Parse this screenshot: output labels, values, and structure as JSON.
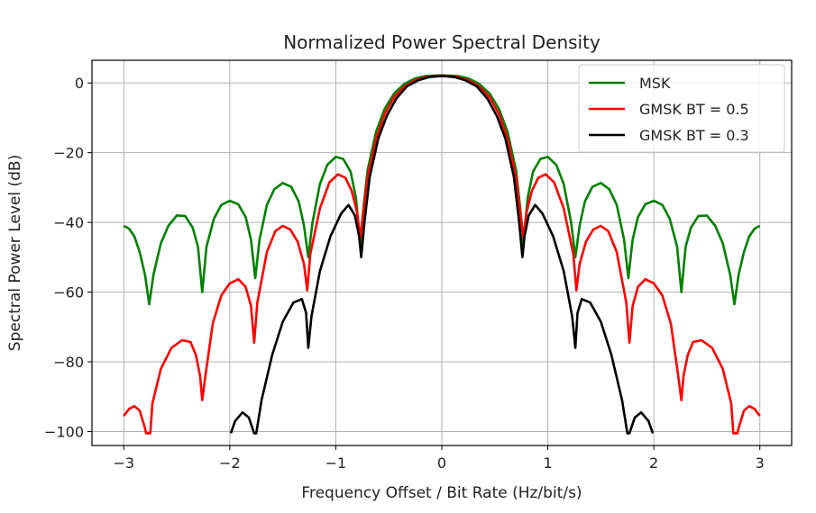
{
  "chart_data": {
    "type": "line",
    "title": "Normalized Power Spectral Density",
    "xlabel": "Frequency Offset / Bit Rate (Hz/bit/s)",
    "ylabel": "Spectral Power Level (dB)",
    "xlim": [
      -3.3,
      3.3
    ],
    "ylim": [
      -104,
      6.5
    ],
    "xticks": [
      -3,
      -2,
      -1,
      0,
      1,
      2,
      3
    ],
    "xtick_labels": [
      "−3",
      "−2",
      "−1",
      "0",
      "1",
      "2",
      "3"
    ],
    "yticks": [
      0,
      -20,
      -40,
      -60,
      -80,
      -100
    ],
    "ytick_labels": [
      "0",
      "−20",
      "−40",
      "−60",
      "−80",
      "−100"
    ],
    "grid": true,
    "legend_position": "top-right",
    "series": [
      {
        "name": "MSK",
        "color": "#008000",
        "points": [
          [
            -3.0,
            -41
          ],
          [
            -2.95,
            -41.8
          ],
          [
            -2.9,
            -44
          ],
          [
            -2.85,
            -48.5
          ],
          [
            -2.8,
            -55
          ],
          [
            -2.76,
            -63.5
          ],
          [
            -2.72,
            -55
          ],
          [
            -2.65,
            -46
          ],
          [
            -2.58,
            -41
          ],
          [
            -2.5,
            -38
          ],
          [
            -2.42,
            -38.2
          ],
          [
            -2.35,
            -41.5
          ],
          [
            -2.3,
            -47
          ],
          [
            -2.26,
            -60
          ],
          [
            -2.22,
            -47
          ],
          [
            -2.15,
            -39
          ],
          [
            -2.08,
            -35
          ],
          [
            -2.0,
            -33.8
          ],
          [
            -1.92,
            -34.8
          ],
          [
            -1.85,
            -38.5
          ],
          [
            -1.8,
            -45
          ],
          [
            -1.76,
            -56
          ],
          [
            -1.72,
            -45
          ],
          [
            -1.65,
            -35
          ],
          [
            -1.58,
            -30.5
          ],
          [
            -1.5,
            -28.7
          ],
          [
            -1.42,
            -29.8
          ],
          [
            -1.35,
            -34
          ],
          [
            -1.3,
            -41
          ],
          [
            -1.26,
            -50
          ],
          [
            -1.22,
            -40
          ],
          [
            -1.15,
            -29
          ],
          [
            -1.08,
            -23.5
          ],
          [
            -1.0,
            -21.2
          ],
          [
            -0.93,
            -21.8
          ],
          [
            -0.86,
            -25.5
          ],
          [
            -0.81,
            -33
          ],
          [
            -0.77,
            -46
          ],
          [
            -0.74,
            -36
          ],
          [
            -0.7,
            -25
          ],
          [
            -0.62,
            -14
          ],
          [
            -0.54,
            -7.5
          ],
          [
            -0.45,
            -3
          ],
          [
            -0.35,
            -0.2
          ],
          [
            -0.25,
            1.3
          ],
          [
            -0.15,
            2.0
          ],
          [
            0,
            2.2
          ],
          [
            0.15,
            2.0
          ],
          [
            0.25,
            1.3
          ],
          [
            0.35,
            -0.2
          ],
          [
            0.45,
            -3
          ],
          [
            0.54,
            -7.5
          ],
          [
            0.62,
            -14
          ],
          [
            0.7,
            -25
          ],
          [
            0.74,
            -36
          ],
          [
            0.77,
            -46
          ],
          [
            0.81,
            -33
          ],
          [
            0.86,
            -25.5
          ],
          [
            0.93,
            -21.8
          ],
          [
            1.0,
            -21.2
          ],
          [
            1.08,
            -23.5
          ],
          [
            1.15,
            -29
          ],
          [
            1.22,
            -40
          ],
          [
            1.26,
            -50
          ],
          [
            1.3,
            -41
          ],
          [
            1.35,
            -34
          ],
          [
            1.42,
            -29.8
          ],
          [
            1.5,
            -28.7
          ],
          [
            1.58,
            -30.5
          ],
          [
            1.65,
            -35
          ],
          [
            1.72,
            -45
          ],
          [
            1.76,
            -56
          ],
          [
            1.8,
            -45
          ],
          [
            1.85,
            -38.5
          ],
          [
            1.92,
            -34.8
          ],
          [
            2.0,
            -33.8
          ],
          [
            2.08,
            -35
          ],
          [
            2.15,
            -39
          ],
          [
            2.22,
            -47
          ],
          [
            2.26,
            -60
          ],
          [
            2.3,
            -47
          ],
          [
            2.35,
            -41.5
          ],
          [
            2.42,
            -38.2
          ],
          [
            2.5,
            -38
          ],
          [
            2.58,
            -41
          ],
          [
            2.65,
            -46
          ],
          [
            2.72,
            -55
          ],
          [
            2.76,
            -63.5
          ],
          [
            2.8,
            -55
          ],
          [
            2.85,
            -48.5
          ],
          [
            2.9,
            -44
          ],
          [
            2.95,
            -41.8
          ],
          [
            3.0,
            -41
          ]
        ]
      },
      {
        "name": "GMSK BT = 0.5",
        "color": "#ff0000",
        "points": [
          [
            -3.0,
            -95.5
          ],
          [
            -2.95,
            -93.5
          ],
          [
            -2.9,
            -92.7
          ],
          [
            -2.85,
            -94
          ],
          [
            -2.8,
            -99
          ],
          [
            -2.79,
            -100.5
          ],
          [
            -2.75,
            -100.5
          ],
          [
            -2.73,
            -92
          ],
          [
            -2.65,
            -82
          ],
          [
            -2.55,
            -76
          ],
          [
            -2.45,
            -73.8
          ],
          [
            -2.37,
            -74.3
          ],
          [
            -2.32,
            -78
          ],
          [
            -2.28,
            -84
          ],
          [
            -2.26,
            -91
          ],
          [
            -2.23,
            -84
          ],
          [
            -2.16,
            -69
          ],
          [
            -2.08,
            -61
          ],
          [
            -2.0,
            -57.5
          ],
          [
            -1.92,
            -56.3
          ],
          [
            -1.85,
            -58.5
          ],
          [
            -1.8,
            -64
          ],
          [
            -1.77,
            -74.5
          ],
          [
            -1.74,
            -63
          ],
          [
            -1.65,
            -48.5
          ],
          [
            -1.57,
            -42.5
          ],
          [
            -1.5,
            -41.0
          ],
          [
            -1.43,
            -42
          ],
          [
            -1.36,
            -45.5
          ],
          [
            -1.3,
            -52
          ],
          [
            -1.27,
            -59.5
          ],
          [
            -1.24,
            -49
          ],
          [
            -1.15,
            -36
          ],
          [
            -1.06,
            -28.5
          ],
          [
            -0.98,
            -26.2
          ],
          [
            -0.91,
            -27.2
          ],
          [
            -0.85,
            -31
          ],
          [
            -0.8,
            -37
          ],
          [
            -0.77,
            -44.5
          ],
          [
            -0.74,
            -37
          ],
          [
            -0.7,
            -27
          ],
          [
            -0.62,
            -16
          ],
          [
            -0.54,
            -9
          ],
          [
            -0.45,
            -4
          ],
          [
            -0.35,
            -1
          ],
          [
            -0.25,
            0.8
          ],
          [
            -0.15,
            1.7
          ],
          [
            0,
            2.1
          ],
          [
            0.15,
            1.7
          ],
          [
            0.25,
            0.8
          ],
          [
            0.35,
            -1
          ],
          [
            0.45,
            -4
          ],
          [
            0.54,
            -9
          ],
          [
            0.62,
            -16
          ],
          [
            0.7,
            -27
          ],
          [
            0.74,
            -37
          ],
          [
            0.77,
            -44.5
          ],
          [
            0.8,
            -37
          ],
          [
            0.85,
            -31
          ],
          [
            0.91,
            -27.2
          ],
          [
            0.98,
            -26.2
          ],
          [
            1.06,
            -28.5
          ],
          [
            1.15,
            -36
          ],
          [
            1.24,
            -49
          ],
          [
            1.27,
            -59.5
          ],
          [
            1.3,
            -52
          ],
          [
            1.36,
            -45.5
          ],
          [
            1.43,
            -42
          ],
          [
            1.5,
            -41.0
          ],
          [
            1.57,
            -42.5
          ],
          [
            1.65,
            -48.5
          ],
          [
            1.74,
            -63
          ],
          [
            1.77,
            -74.5
          ],
          [
            1.8,
            -64
          ],
          [
            1.85,
            -58.5
          ],
          [
            1.92,
            -56.3
          ],
          [
            2.0,
            -57.5
          ],
          [
            2.08,
            -61
          ],
          [
            2.16,
            -69
          ],
          [
            2.23,
            -84
          ],
          [
            2.26,
            -91
          ],
          [
            2.28,
            -84
          ],
          [
            2.32,
            -78
          ],
          [
            2.37,
            -74.3
          ],
          [
            2.45,
            -73.8
          ],
          [
            2.55,
            -76
          ],
          [
            2.65,
            -82
          ],
          [
            2.73,
            -92
          ],
          [
            2.75,
            -100.5
          ],
          [
            2.79,
            -100.5
          ],
          [
            2.8,
            -99
          ],
          [
            2.85,
            -94
          ],
          [
            2.9,
            -92.7
          ],
          [
            2.95,
            -93.5
          ],
          [
            3.0,
            -95.5
          ]
        ]
      },
      {
        "name": "GMSK BT = 0.3",
        "color": "#000000",
        "points": [
          [
            -1.99,
            -100.5
          ],
          [
            -1.95,
            -97
          ],
          [
            -1.88,
            -94.5
          ],
          [
            -1.82,
            -96
          ],
          [
            -1.77,
            -100.5
          ],
          [
            -1.75,
            -100.5
          ],
          [
            -1.7,
            -91
          ],
          [
            -1.6,
            -78
          ],
          [
            -1.5,
            -68.5
          ],
          [
            -1.4,
            -63
          ],
          [
            -1.32,
            -62
          ],
          [
            -1.28,
            -66
          ],
          [
            -1.26,
            -76
          ],
          [
            -1.23,
            -67
          ],
          [
            -1.15,
            -54
          ],
          [
            -1.05,
            -44
          ],
          [
            -0.95,
            -37.5
          ],
          [
            -0.88,
            -35
          ],
          [
            -0.82,
            -38
          ],
          [
            -0.78,
            -44
          ],
          [
            -0.76,
            -50
          ],
          [
            -0.73,
            -40
          ],
          [
            -0.68,
            -27
          ],
          [
            -0.6,
            -16
          ],
          [
            -0.52,
            -9.5
          ],
          [
            -0.43,
            -4.5
          ],
          [
            -0.33,
            -1
          ],
          [
            -0.22,
            0.8
          ],
          [
            -0.12,
            1.7
          ],
          [
            0,
            2.0
          ],
          [
            0.12,
            1.7
          ],
          [
            0.22,
            0.8
          ],
          [
            0.33,
            -1
          ],
          [
            0.43,
            -4.5
          ],
          [
            0.52,
            -9.5
          ],
          [
            0.6,
            -16
          ],
          [
            0.68,
            -27
          ],
          [
            0.73,
            -40
          ],
          [
            0.76,
            -50
          ],
          [
            0.78,
            -44
          ],
          [
            0.82,
            -38
          ],
          [
            0.88,
            -35
          ],
          [
            0.95,
            -37.5
          ],
          [
            1.05,
            -44
          ],
          [
            1.15,
            -54
          ],
          [
            1.23,
            -67
          ],
          [
            1.26,
            -76
          ],
          [
            1.28,
            -66
          ],
          [
            1.32,
            -62
          ],
          [
            1.4,
            -63
          ],
          [
            1.5,
            -68.5
          ],
          [
            1.6,
            -78
          ],
          [
            1.7,
            -91
          ],
          [
            1.75,
            -100.5
          ],
          [
            1.77,
            -100.5
          ],
          [
            1.82,
            -96
          ],
          [
            1.88,
            -94.5
          ],
          [
            1.95,
            -97
          ],
          [
            1.99,
            -100.5
          ]
        ]
      }
    ]
  }
}
